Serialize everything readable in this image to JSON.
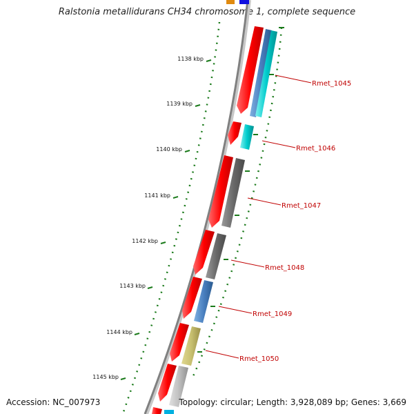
{
  "title": "Ralstonia metallidurans CH34 chromosome 1, complete sequence",
  "footer": {
    "accession": "Accession: NC_007973",
    "topology": "Topology: circular; Length: 3,928,089 bp; Genes: 3,669"
  },
  "colors": {
    "forward_cds": "#ff0000",
    "backbone": "#808080",
    "tick": "#1a7a1a",
    "label": "#c00000"
  },
  "kbp_ticks": [
    "1138 kbp",
    "1139 kbp",
    "1140 kbp",
    "1141 kbp",
    "1142 kbp",
    "1143 kbp",
    "1144 kbp",
    "1145 kbp"
  ],
  "genes": [
    {
      "label": "Rmet_1045",
      "color": "#4a90c8",
      "secondary_color": "#00cccc"
    },
    {
      "label": "Rmet_1046",
      "color": "#00cccc"
    },
    {
      "label": "Rmet_1047",
      "color": "#707070"
    },
    {
      "label": "Rmet_1048",
      "color": "#707070"
    },
    {
      "label": "Rmet_1049",
      "color": "#4a80c0"
    },
    {
      "label": "Rmet_1050",
      "color": "#c8c070"
    }
  ]
}
